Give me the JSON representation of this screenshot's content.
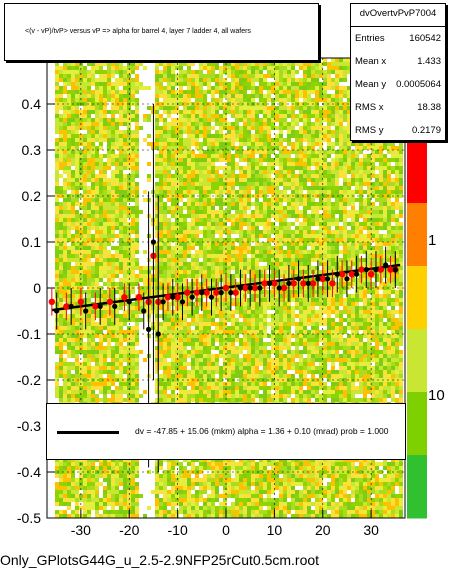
{
  "title": "<(v - vP)/tvP> versus   vP => alpha for barrel 4, layer 7 ladder 4, all wafers",
  "stats": {
    "name": "dvOvertvPvP7004",
    "rows": [
      {
        "label": "Entries",
        "value": "160542"
      },
      {
        "label": "Mean x",
        "value": "1.433"
      },
      {
        "label": "Mean y",
        "value": "0.0005064"
      },
      {
        "label": "RMS x",
        "value": "18.38"
      },
      {
        "label": "RMS y",
        "value": "0.2179"
      }
    ]
  },
  "fit_text": "dv =  -47.85 +  15.06 (mkm) alpha =    1.36 +   0.10 (mrad) prob = 1.000",
  "filename": "Only_GPlotsG44G_u_2.5-2.9NFP25rCut0.5cm.root",
  "colors": {
    "marker": "#ff0000",
    "profile": "#000000",
    "fit": "#000000"
  },
  "chart_data": {
    "type": "heatmap",
    "xlim": [
      -37,
      37
    ],
    "ylim": [
      -0.5,
      0.5
    ],
    "xticks": [
      -30,
      -20,
      -10,
      0,
      10,
      20,
      30
    ],
    "yticks": [
      -0.5,
      -0.4,
      -0.3,
      -0.2,
      -0.1,
      0,
      0.1,
      0.2,
      0.3,
      0.4
    ],
    "colorbar_labels": [
      "10",
      "1",
      "10"
    ],
    "fit_line": {
      "x": [
        -36,
        36
      ],
      "y": [
        -0.048,
        0.05
      ]
    },
    "profile_red": {
      "x": [
        -36,
        -33,
        -30,
        -27,
        -24,
        -21,
        -18,
        -16,
        -15,
        -14,
        -12,
        -10,
        -8,
        -6,
        -4,
        -2,
        0,
        2,
        4,
        6,
        8,
        10,
        12,
        14,
        16,
        18,
        20,
        22,
        24,
        26,
        28,
        30,
        32,
        34,
        35
      ],
      "y": [
        -0.03,
        -0.04,
        -0.03,
        -0.04,
        -0.03,
        -0.02,
        -0.02,
        -0.03,
        0.07,
        -0.03,
        -0.02,
        -0.02,
        -0.01,
        -0.01,
        -0.01,
        -0.01,
        0.0,
        -0.01,
        0.0,
        0.0,
        0.01,
        0.01,
        0.0,
        0.01,
        0.01,
        0.01,
        0.02,
        0.01,
        0.03,
        0.03,
        0.04,
        0.03,
        0.04,
        0.04,
        0.04
      ]
    },
    "profile_black": {
      "x": [
        -35,
        -32,
        -29,
        -26,
        -23,
        -20,
        -17,
        -16,
        -15,
        -14,
        -13,
        -11,
        -9,
        -7,
        -5,
        -3,
        -1,
        1,
        3,
        5,
        7,
        9,
        11,
        13,
        15,
        17,
        19,
        21,
        23,
        25,
        27,
        29,
        31,
        33,
        35
      ],
      "y": [
        -0.05,
        -0.04,
        -0.05,
        -0.04,
        -0.04,
        -0.03,
        -0.05,
        -0.09,
        0.1,
        -0.1,
        -0.03,
        -0.02,
        -0.03,
        -0.02,
        -0.01,
        -0.02,
        -0.01,
        -0.01,
        0.0,
        0.0,
        0.0,
        0.01,
        0.0,
        0.01,
        0.02,
        0.01,
        0.02,
        0.02,
        0.03,
        0.02,
        0.03,
        0.04,
        0.04,
        0.05,
        0.04
      ]
    }
  }
}
